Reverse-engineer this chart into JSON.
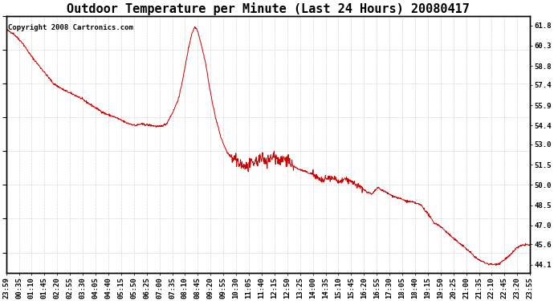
{
  "title": "Outdoor Temperature per Minute (Last 24 Hours) 20080417",
  "copyright_text": "Copyright 2008 Cartronics.com",
  "line_color": "#cc0000",
  "background_color": "#ffffff",
  "grid_color": "#aaaaaa",
  "yticks": [
    44.1,
    45.6,
    47.0,
    48.5,
    50.0,
    51.5,
    53.0,
    54.4,
    55.9,
    57.4,
    58.8,
    60.3,
    61.8
  ],
  "ylim": [
    43.5,
    62.5
  ],
  "xtick_labels": [
    "23:59",
    "00:35",
    "01:10",
    "01:45",
    "02:20",
    "02:55",
    "03:30",
    "04:05",
    "04:40",
    "05:15",
    "05:50",
    "06:25",
    "07:00",
    "07:35",
    "08:10",
    "08:45",
    "09:20",
    "09:55",
    "10:30",
    "11:05",
    "11:40",
    "12:15",
    "12:50",
    "13:25",
    "14:00",
    "14:35",
    "15:10",
    "15:45",
    "16:20",
    "16:55",
    "17:30",
    "18:05",
    "18:40",
    "19:15",
    "19:50",
    "20:25",
    "21:00",
    "21:35",
    "22:10",
    "22:45",
    "23:20",
    "23:55"
  ],
  "title_fontsize": 11,
  "tick_fontsize": 6.5,
  "copyright_fontsize": 6.5
}
